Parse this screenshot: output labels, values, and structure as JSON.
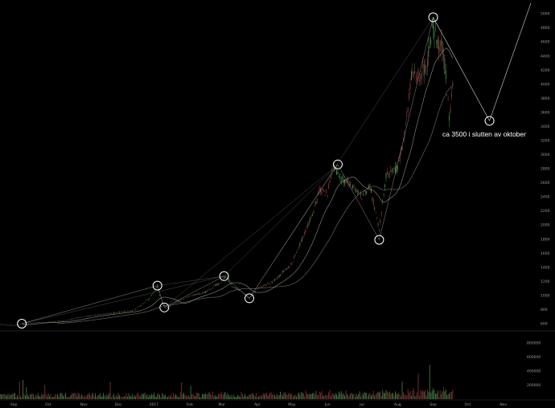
{
  "chart_data": {
    "type": "line",
    "annotation": "ca 3500 i slutten av oktober",
    "colors": {
      "background": "#000000",
      "price_line": "#a8a8a8",
      "up": "#4c8c4c",
      "down": "#8c3a3a",
      "trendline": "#8a8a8a",
      "marker": "#ffffff",
      "separator": "#444444"
    },
    "x_ticks": [
      "Sep",
      "Oct",
      "Nov",
      "Dec",
      "2017",
      "Feb",
      "Mar",
      "Apr",
      "May",
      "Jun",
      "Jul",
      "Aug",
      "Sep",
      "Oct",
      "Nov"
    ],
    "y_ticks": [
      "5000",
      "4800",
      "4600",
      "4400",
      "4200",
      "4000",
      "3800",
      "3600",
      "3400",
      "3200",
      "3000",
      "2800",
      "2600",
      "2400",
      "2200",
      "2000",
      "1800",
      "1600",
      "1400",
      "1200",
      "1000",
      "800",
      "600"
    ],
    "y_range": [
      520,
      5150
    ],
    "volume_ticks": [
      "800000",
      "600000",
      "400000",
      "200000"
    ],
    "volume_range": [
      0,
      900000
    ],
    "price_series": {
      "x": [
        "2016-08-20",
        "2016-09-01",
        "2016-09-15",
        "2016-10-01",
        "2016-10-15",
        "2016-11-01",
        "2016-11-15",
        "2016-12-01",
        "2016-12-15",
        "2016-12-28",
        "2017-01-04",
        "2017-01-08",
        "2017-01-12",
        "2017-01-20",
        "2017-02-01",
        "2017-02-15",
        "2017-03-01",
        "2017-03-05",
        "2017-03-10",
        "2017-03-18",
        "2017-03-25",
        "2017-04-01",
        "2017-04-15",
        "2017-05-01",
        "2017-05-10",
        "2017-05-20",
        "2017-05-25",
        "2017-06-01",
        "2017-06-06",
        "2017-06-12",
        "2017-06-20",
        "2017-06-26",
        "2017-07-01",
        "2017-07-08",
        "2017-07-16",
        "2017-07-22",
        "2017-08-01",
        "2017-08-07",
        "2017-08-14",
        "2017-08-20",
        "2017-08-27",
        "2017-09-01",
        "2017-09-04",
        "2017-09-08",
        "2017-09-12",
        "2017-09-15",
        "2017-09-18"
      ],
      "y": [
        590,
        575,
        610,
        620,
        640,
        700,
        730,
        760,
        790,
        960,
        1130,
        900,
        820,
        900,
        990,
        1050,
        1200,
        1280,
        1130,
        1060,
        960,
        1100,
        1200,
        1450,
        1800,
        2200,
        2500,
        2450,
        2850,
        2650,
        2600,
        2500,
        2400,
        2550,
        1930,
        2700,
        2800,
        3300,
        4200,
        4100,
        4300,
        4900,
        4500,
        4600,
        4150,
        3500,
        4000
      ]
    },
    "trend_points": {
      "x": [
        "2016-09-08",
        "2017-01-04",
        "2017-01-10",
        "2017-03-03",
        "2017-03-25",
        "2017-06-10",
        "2017-07-16",
        "2017-09-01",
        "2017-10-20"
      ],
      "y": [
        600,
        1140,
        830,
        1275,
        960,
        2860,
        1790,
        4950,
        3480
      ]
    },
    "projection": {
      "x": [
        "2017-09-01",
        "2017-10-20",
        "2017-11-25"
      ],
      "y": [
        4950,
        3480,
        5150
      ]
    }
  }
}
